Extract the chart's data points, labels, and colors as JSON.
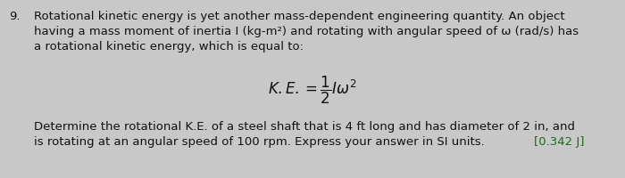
{
  "number": "9.",
  "para1_line1": "Rotational kinetic energy is yet another mass-dependent engineering quantity. An object",
  "para1_line2": "having a mass moment of inertia I (kg-m²) and rotating with angular speed of ω (rad/s) has",
  "para1_line3": "a rotational kinetic energy, which is equal to:",
  "para2_line1": "Determine the rotational K.E. of a steel shaft that is 4 ft long and has diameter of 2 in, and",
  "para2_line2": "is rotating at an angular speed of 100 rpm. Express your answer in SI units.",
  "answer": "[0.342 J]",
  "bg_color": "#c8c8c8",
  "text_color": "#111111",
  "answer_color": "#1a6b1a",
  "font_size_body": 9.5,
  "font_size_formula": 12
}
